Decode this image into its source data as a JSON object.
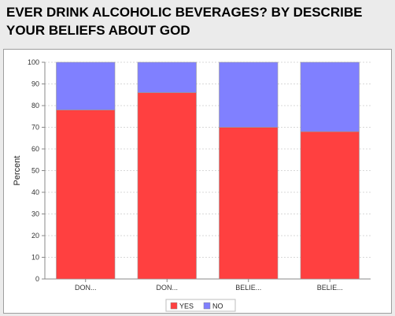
{
  "title_line1": "EVER DRINK ALCOHOLIC BEVERAGES? BY DESCRIBE",
  "title_line2": "YOUR BELIEFS ABOUT GOD",
  "chart_data": {
    "type": "bar",
    "stacked": true,
    "categories": [
      "DON...",
      "DON...",
      "BELIE...",
      "BELIE..."
    ],
    "series": [
      {
        "name": "YES",
        "color": "#ff4040",
        "values": [
          78,
          86,
          70,
          68
        ]
      },
      {
        "name": "NO",
        "color": "#8080ff",
        "values": [
          22,
          14,
          30,
          32
        ]
      }
    ],
    "xlabel": "",
    "ylabel": "Percent",
    "ylim": [
      0,
      100
    ],
    "yticks": [
      0,
      10,
      20,
      30,
      40,
      50,
      60,
      70,
      80,
      90,
      100
    ],
    "grid": true,
    "legend_position": "bottom"
  }
}
